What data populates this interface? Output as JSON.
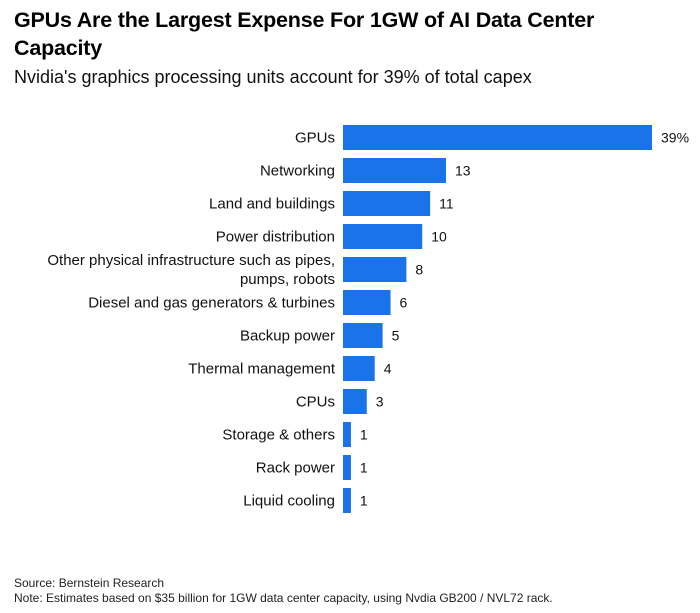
{
  "chart_data": {
    "type": "bar",
    "orientation": "horizontal",
    "title": "GPUs Are the Largest Expense For 1GW of AI Data Center Capacity",
    "subtitle": "Nvidia's graphics processing units account for 39% of total capex",
    "categories": [
      "GPUs",
      "Networking",
      "Land and buildings",
      "Power distribution",
      "Other physical infrastructure such as pipes, pumps, robots",
      "Diesel and gas generators & turbines",
      "Backup power",
      "Thermal management",
      "CPUs",
      "Storage & others",
      "Rack power",
      "Liquid cooling"
    ],
    "category_lines": [
      [
        "GPUs"
      ],
      [
        "Networking"
      ],
      [
        "Land and buildings"
      ],
      [
        "Power distribution"
      ],
      [
        "Other physical infrastructure such as pipes,",
        "pumps, robots"
      ],
      [
        "Diesel and gas generators & turbines"
      ],
      [
        "Backup power"
      ],
      [
        "Thermal management"
      ],
      [
        "CPUs"
      ],
      [
        "Storage & others"
      ],
      [
        "Rack power"
      ],
      [
        "Liquid cooling"
      ]
    ],
    "values": [
      39,
      13,
      11,
      10,
      8,
      6,
      5,
      4,
      3,
      1,
      1,
      1
    ],
    "value_labels": [
      "39%",
      "13",
      "11",
      "10",
      "8",
      "6",
      "5",
      "4",
      "3",
      "1",
      "1",
      "1"
    ],
    "unit": "%",
    "xlim": [
      0,
      39
    ],
    "grid": false,
    "legend": "none",
    "bar_color": "#1a73e8"
  },
  "footer": {
    "source": "Source: Bernstein Research",
    "note": "Note: Estimates based on $35 billion for 1GW data center capacity, using Nvdia GB200 / NVL72 rack."
  }
}
